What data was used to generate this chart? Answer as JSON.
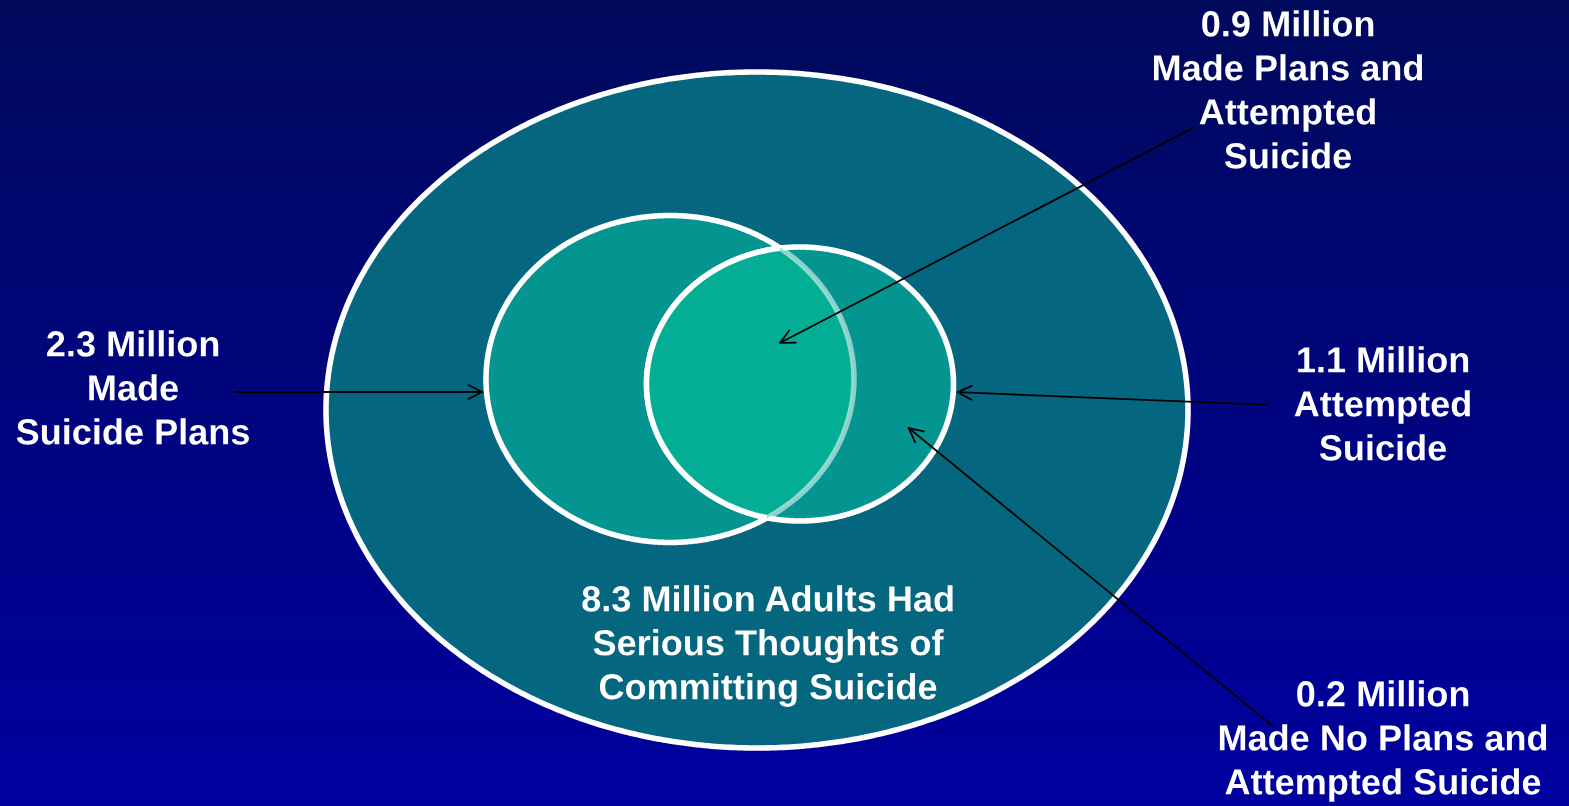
{
  "chart_data": {
    "type": "other",
    "categories": [
      "Million Adults Had\nSerious Thoughts of\nCommitting Suicide",
      "Million\nMade\nSuicide Plans",
      "Million\nAttempted\nSuicide",
      "Million\nMade Plans and\nAttempted\nSuicide",
      "Million\nMade No Plans and\nAttempted Suicide"
    ],
    "values": [
      8.3,
      2.3,
      1.1,
      0.9,
      0.2
    ],
    "data_labels": true,
    "colors": [
      "#05677f",
      "#059590",
      "#059590",
      "#04ae94",
      "#059590"
    ]
  }
}
